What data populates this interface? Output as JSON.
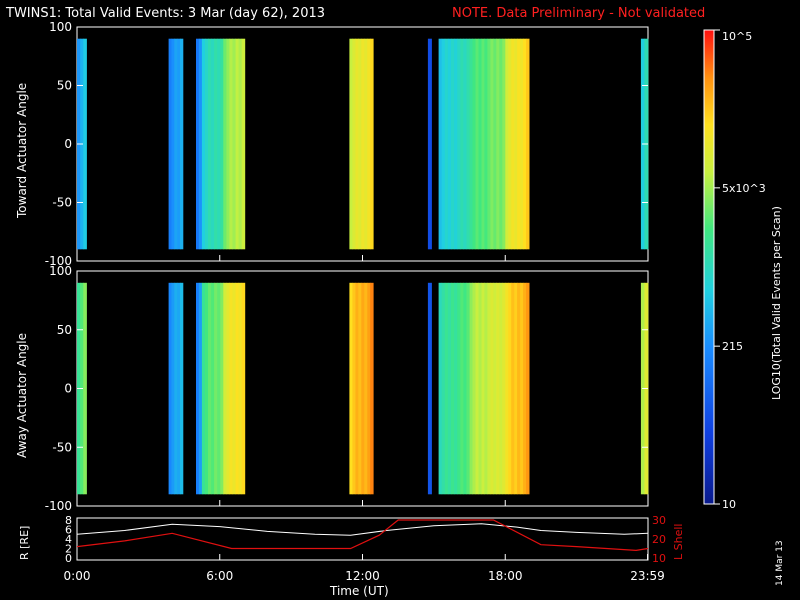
{
  "title": "TWINS1: Total Valid Events:  3 Mar (day  62), 2013",
  "note": "NOTE. Data Preliminary - Not validated",
  "date_stamp": "14 Mar 13",
  "colors": {
    "background": "#000000",
    "note": "#ff2020",
    "lshell_line": "#e01010",
    "radius_line": "#ffffff"
  },
  "chart_data": [
    {
      "type": "heatmap",
      "panel": "top",
      "ylabel": "Toward Actuator Angle",
      "ylim": [
        -100,
        100
      ],
      "yticks": [
        100,
        50,
        0,
        -50,
        -100
      ],
      "x_range_hours": [
        0,
        24
      ],
      "scans": [
        {
          "start": 0.0,
          "end": 0.4,
          "level": 0.35
        },
        {
          "start": 3.85,
          "end": 4.45,
          "level": 0.3
        },
        {
          "start": 4.45,
          "end": 5.0,
          "level": 0.0
        },
        {
          "start": 5.0,
          "end": 5.25,
          "level": 0.28
        },
        {
          "start": 5.25,
          "end": 6.15,
          "level": 0.45
        },
        {
          "start": 6.15,
          "end": 7.05,
          "level": 0.62
        },
        {
          "start": 11.45,
          "end": 12.45,
          "level": 0.7
        },
        {
          "start": 14.75,
          "end": 14.9,
          "level": 0.18
        },
        {
          "start": 15.2,
          "end": 16.5,
          "level": 0.42
        },
        {
          "start": 16.5,
          "end": 18.0,
          "level": 0.55
        },
        {
          "start": 18.0,
          "end": 19.0,
          "level": 0.72
        },
        {
          "start": 23.7,
          "end": 24.0,
          "level": 0.45
        }
      ]
    },
    {
      "type": "heatmap",
      "panel": "bottom",
      "ylabel": "Away Actuator Angle",
      "ylim": [
        -100,
        100
      ],
      "yticks": [
        100,
        50,
        0,
        -50,
        -100
      ],
      "x_range_hours": [
        0,
        24
      ],
      "scans": [
        {
          "start": 0.0,
          "end": 0.4,
          "level": 0.55
        },
        {
          "start": 3.85,
          "end": 4.45,
          "level": 0.32
        },
        {
          "start": 4.45,
          "end": 5.0,
          "level": 0.0
        },
        {
          "start": 5.0,
          "end": 5.25,
          "level": 0.3
        },
        {
          "start": 5.25,
          "end": 6.15,
          "level": 0.55
        },
        {
          "start": 6.15,
          "end": 7.05,
          "level": 0.72
        },
        {
          "start": 11.45,
          "end": 12.45,
          "level": 0.8
        },
        {
          "start": 14.75,
          "end": 14.9,
          "level": 0.2
        },
        {
          "start": 15.2,
          "end": 16.5,
          "level": 0.5
        },
        {
          "start": 16.5,
          "end": 18.0,
          "level": 0.65
        },
        {
          "start": 18.0,
          "end": 19.0,
          "level": 0.78
        },
        {
          "start": 23.7,
          "end": 24.0,
          "level": 0.68
        }
      ]
    },
    {
      "type": "line",
      "panel": "orbit",
      "xlabel": "Time (UT)",
      "xticks": [
        "0:00",
        "6:00",
        "12:00",
        "18:00",
        "23:59"
      ],
      "xtick_hours": [
        0,
        6,
        12,
        18,
        23.98
      ],
      "ylabel_left": "R [RE]",
      "ylim_left": [
        0,
        8
      ],
      "yticks_left": [
        0,
        2,
        4,
        6,
        8
      ],
      "ylabel_right": "L Shell",
      "ylim_right": [
        10,
        30
      ],
      "yticks_right": [
        10,
        20,
        30
      ],
      "series": [
        {
          "name": "R [RE]",
          "axis": "left",
          "x": [
            0,
            2,
            4,
            6,
            8,
            10,
            11.5,
            13,
            15,
            17,
            18.5,
            19.5,
            21,
            23,
            24
          ],
          "y": [
            5.0,
            5.8,
            7.1,
            6.6,
            5.6,
            5.0,
            4.8,
            5.8,
            6.8,
            7.2,
            6.5,
            5.8,
            5.4,
            5.0,
            5.2
          ]
        },
        {
          "name": "L Shell",
          "axis": "right",
          "x": [
            0,
            2,
            4,
            6.5,
            9,
            11.5,
            12.7,
            13.5,
            17.5,
            19.5,
            21,
            23.5,
            24
          ],
          "y": [
            16,
            19,
            23,
            15,
            15,
            15,
            22,
            30,
            30,
            17,
            16,
            14,
            15
          ]
        }
      ]
    }
  ],
  "colorbar": {
    "label": "LOG10(Total Valid Events per Scan)",
    "tick_labels": [
      "10",
      "215",
      "5x10^3",
      "10^5"
    ],
    "tick_fractions": [
      0.0,
      0.333,
      0.667,
      1.0
    ]
  }
}
